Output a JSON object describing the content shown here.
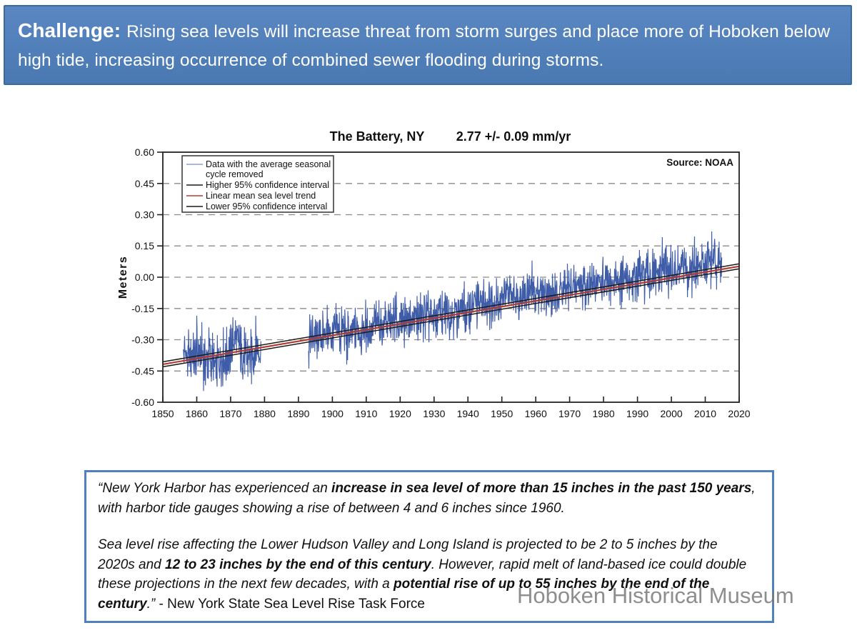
{
  "slide": {
    "header": {
      "prefix": "Challenge:",
      "text": "Rising sea levels will increase threat from storm surges and place more of Hoboken below high tide, increasing occurrence of combined sewer flooding during storms.",
      "bg_color": "#4f81bd",
      "border_color": "#3c6a9e",
      "text_color": "#ffffff"
    },
    "watermark": "Hoboken Historical Museum",
    "quote_box": {
      "border_color": "#4f81bd",
      "paragraphs": [
        [
          {
            "text": "“New York Harbor has experienced an ",
            "bold": false
          },
          {
            "text": "increase in sea level of more than 15 inches in the past 150 years",
            "bold": true
          },
          {
            "text": ", with harbor tide gauges showing a rise of between 4 and 6 inches since 1960.",
            "bold": false
          }
        ],
        [
          {
            "text": "Sea level rise affecting the Lower Hudson Valley and Long Island is projected to be 2 to 5 inches by the 2020s and ",
            "bold": false
          },
          {
            "text": "12 to 23 inches by the end of this century",
            "bold": true
          },
          {
            "text": ". However, rapid melt of land-based ice could double these projections in the next few decades, with a ",
            "bold": false
          },
          {
            "text": "potential rise of up to 55 inches by the end of the century",
            "bold": true
          },
          {
            "text": ".” ",
            "bold": false
          },
          {
            "text": "- New York State Sea Level Rise Task Force",
            "bold": false,
            "italic": false
          }
        ]
      ]
    }
  },
  "chart_data": {
    "type": "line",
    "title": "The Battery, NY",
    "trend_rate_label": "2.77 +/- 0.09 mm/yr",
    "source_label": "Source: NOAA",
    "ylabel": "Meters",
    "xlim": [
      1850,
      2020
    ],
    "ylim": [
      -0.6,
      0.6
    ],
    "xticks": [
      1850,
      1860,
      1870,
      1880,
      1890,
      1900,
      1910,
      1920,
      1930,
      1940,
      1950,
      1960,
      1970,
      1980,
      1990,
      2000,
      2010,
      2020
    ],
    "yticks": [
      0.6,
      0.45,
      0.3,
      0.15,
      0.0,
      -0.15,
      -0.3,
      -0.45,
      -0.6
    ],
    "grid": "dashed-horizontal",
    "grid_color": "#8a8a8a",
    "legend_position": "top-left",
    "legend": [
      {
        "lines": [
          "Data with the average seasonal",
          "cycle removed"
        ],
        "color": "#8aa0d4"
      },
      {
        "lines": [
          "Higher 95% confidence interval"
        ],
        "color": "#1a1a1a"
      },
      {
        "lines": [
          "Linear mean sea level trend"
        ],
        "color": "#b23b32"
      },
      {
        "lines": [
          "Lower 95% confidence interval"
        ],
        "color": "#1a1a1a"
      }
    ],
    "series": [
      {
        "name": "Monthly mean sea level with average seasonal cycle removed (annual means, meters)",
        "color": "#3f5ca8",
        "monthly_noise_amplitude_note": "monthly values scatter roughly +/-0.06 to +/-0.13 m around annual means",
        "segments": [
          {
            "start_year": 1856,
            "end_year": 1878,
            "noise": 0.08,
            "values": [
              -0.36,
              -0.38,
              -0.37,
              -0.39,
              -0.36,
              -0.38,
              -0.4,
              -0.37,
              -0.41,
              -0.44,
              -0.42,
              -0.38,
              -0.4,
              -0.36,
              -0.32,
              -0.3,
              -0.33,
              -0.38,
              -0.4,
              -0.38,
              -0.36,
              -0.34,
              -0.36
            ]
          },
          {
            "start_year": 1893,
            "end_year": 2014,
            "noise": 0.068,
            "values": [
              -0.3,
              -0.29,
              -0.3,
              -0.28,
              -0.27,
              -0.26,
              -0.28,
              -0.26,
              -0.25,
              -0.27,
              -0.24,
              -0.3,
              -0.27,
              -0.25,
              -0.24,
              -0.27,
              -0.24,
              -0.26,
              -0.24,
              -0.23,
              -0.22,
              -0.24,
              -0.21,
              -0.22,
              -0.23,
              -0.21,
              -0.22,
              -0.21,
              -0.19,
              -0.2,
              -0.21,
              -0.2,
              -0.19,
              -0.2,
              -0.18,
              -0.19,
              -0.21,
              -0.19,
              -0.17,
              -0.18,
              -0.16,
              -0.18,
              -0.17,
              -0.16,
              -0.14,
              -0.15,
              -0.16,
              -0.15,
              -0.13,
              -0.13,
              -0.14,
              -0.13,
              -0.12,
              -0.11,
              -0.12,
              -0.11,
              -0.12,
              -0.1,
              -0.09,
              -0.1,
              -0.08,
              -0.09,
              -0.1,
              -0.09,
              -0.08,
              -0.06,
              -0.07,
              -0.07,
              -0.06,
              -0.07,
              -0.08,
              -0.09,
              -0.08,
              -0.07,
              -0.06,
              -0.06,
              -0.05,
              -0.06,
              -0.05,
              -0.03,
              -0.03,
              -0.04,
              -0.04,
              -0.03,
              -0.04,
              -0.02,
              -0.03,
              -0.04,
              -0.04,
              -0.03,
              -0.01,
              -0.02,
              -0.03,
              -0.02,
              -0.02,
              -0.02,
              -0.01,
              0.0,
              0.01,
              0.0,
              0.01,
              0.0,
              0.0,
              0.02,
              0.04,
              0.05,
              0.03,
              0.02,
              0.03,
              0.04,
              0.04,
              0.03,
              0.05,
              0.05,
              0.03,
              0.05,
              0.06,
              0.08,
              0.09,
              0.08,
              0.07,
              0.08
            ]
          }
        ]
      }
    ],
    "trend": {
      "name": "Linear mean sea level trend",
      "x": [
        1850,
        2020
      ],
      "y": [
        -0.418,
        0.052
      ],
      "color": "#b23b32",
      "confidence_offset": 0.012,
      "ci_color": "#1a1a1a"
    }
  }
}
